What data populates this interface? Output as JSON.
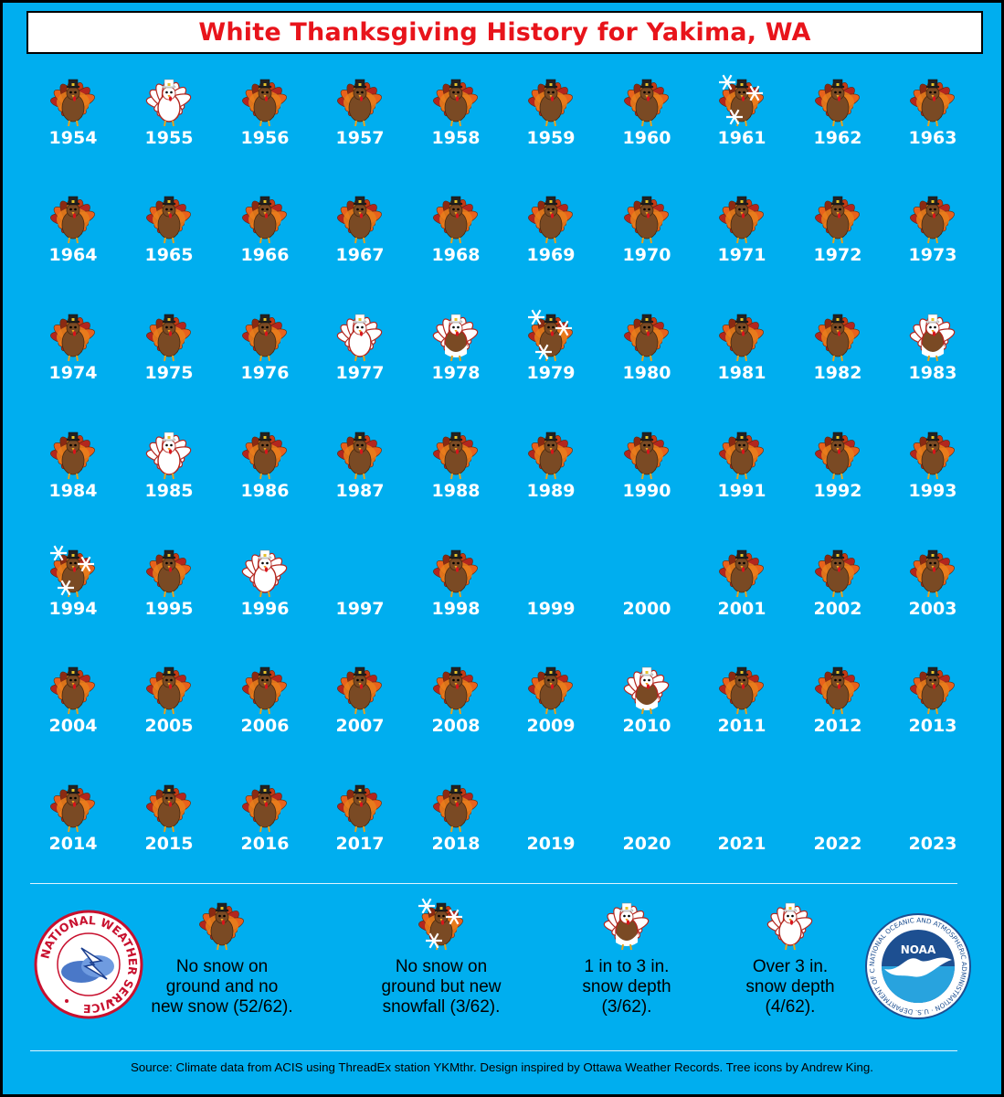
{
  "title": "White Thanksgiving History for Yakima, WA",
  "colors": {
    "background": "#00aeef",
    "title": "#e8141b",
    "none": "#7a4a24",
    "new_snow": "#7a4a24",
    "depth_1_3": "#ffffff",
    "depth_over_3": "#ffffff"
  },
  "chart_data": {
    "type": "table",
    "title": "White Thanksgiving History for Yakima, WA",
    "categories": [
      "none",
      "new_snow",
      "depth_1_3",
      "depth_over_3",
      "no_data"
    ],
    "years": [
      {
        "year": "1954",
        "category": "none"
      },
      {
        "year": "1955",
        "category": "depth_over_3"
      },
      {
        "year": "1956",
        "category": "none"
      },
      {
        "year": "1957",
        "category": "none"
      },
      {
        "year": "1958",
        "category": "none"
      },
      {
        "year": "1959",
        "category": "none"
      },
      {
        "year": "1960",
        "category": "none"
      },
      {
        "year": "1961",
        "category": "new_snow"
      },
      {
        "year": "1962",
        "category": "none"
      },
      {
        "year": "1963",
        "category": "none"
      },
      {
        "year": "1964",
        "category": "none"
      },
      {
        "year": "1965",
        "category": "none"
      },
      {
        "year": "1966",
        "category": "none"
      },
      {
        "year": "1967",
        "category": "none"
      },
      {
        "year": "1968",
        "category": "none"
      },
      {
        "year": "1969",
        "category": "none"
      },
      {
        "year": "1970",
        "category": "none"
      },
      {
        "year": "1971",
        "category": "none"
      },
      {
        "year": "1972",
        "category": "none"
      },
      {
        "year": "1973",
        "category": "none"
      },
      {
        "year": "1974",
        "category": "none"
      },
      {
        "year": "1975",
        "category": "none"
      },
      {
        "year": "1976",
        "category": "none"
      },
      {
        "year": "1977",
        "category": "depth_over_3"
      },
      {
        "year": "1978",
        "category": "depth_1_3"
      },
      {
        "year": "1979",
        "category": "new_snow"
      },
      {
        "year": "1980",
        "category": "none"
      },
      {
        "year": "1981",
        "category": "none"
      },
      {
        "year": "1982",
        "category": "none"
      },
      {
        "year": "1983",
        "category": "depth_1_3"
      },
      {
        "year": "1984",
        "category": "none"
      },
      {
        "year": "1985",
        "category": "depth_over_3"
      },
      {
        "year": "1986",
        "category": "none"
      },
      {
        "year": "1987",
        "category": "none"
      },
      {
        "year": "1988",
        "category": "none"
      },
      {
        "year": "1989",
        "category": "none"
      },
      {
        "year": "1990",
        "category": "none"
      },
      {
        "year": "1991",
        "category": "none"
      },
      {
        "year": "1992",
        "category": "none"
      },
      {
        "year": "1993",
        "category": "none"
      },
      {
        "year": "1994",
        "category": "new_snow"
      },
      {
        "year": "1995",
        "category": "none"
      },
      {
        "year": "1996",
        "category": "depth_over_3"
      },
      {
        "year": "1997",
        "category": "no_data"
      },
      {
        "year": "1998",
        "category": "none"
      },
      {
        "year": "1999",
        "category": "no_data"
      },
      {
        "year": "2000",
        "category": "no_data"
      },
      {
        "year": "2001",
        "category": "none"
      },
      {
        "year": "2002",
        "category": "none"
      },
      {
        "year": "2003",
        "category": "none"
      },
      {
        "year": "2004",
        "category": "none"
      },
      {
        "year": "2005",
        "category": "none"
      },
      {
        "year": "2006",
        "category": "none"
      },
      {
        "year": "2007",
        "category": "none"
      },
      {
        "year": "2008",
        "category": "none"
      },
      {
        "year": "2009",
        "category": "none"
      },
      {
        "year": "2010",
        "category": "depth_1_3"
      },
      {
        "year": "2011",
        "category": "none"
      },
      {
        "year": "2012",
        "category": "none"
      },
      {
        "year": "2013",
        "category": "none"
      },
      {
        "year": "2014",
        "category": "none"
      },
      {
        "year": "2015",
        "category": "none"
      },
      {
        "year": "2016",
        "category": "none"
      },
      {
        "year": "2017",
        "category": "none"
      },
      {
        "year": "2018",
        "category": "none"
      },
      {
        "year": "2019",
        "category": "no_data"
      },
      {
        "year": "2020",
        "category": "no_data"
      },
      {
        "year": "2021",
        "category": "no_data"
      },
      {
        "year": "2022",
        "category": "no_data"
      },
      {
        "year": "2023",
        "category": "no_data"
      }
    ]
  },
  "legend": {
    "none": "No snow on ground and no new snow (52/62).",
    "new_snow": "No snow on ground but new snowfall (3/62).",
    "depth_1_3": "1 in to 3 in. snow depth (3/62).",
    "depth_over_3": "Over 3 in. snow depth (4/62)."
  },
  "legend_lines": {
    "none": [
      "No snow on",
      "ground and no",
      "new snow (52/62)."
    ],
    "new_snow": [
      "No snow on",
      "ground but new",
      "snowfall (3/62)."
    ],
    "depth_1_3": [
      "1 in to 3 in.",
      "snow depth",
      "(3/62)."
    ],
    "depth_over_3": [
      "Over 3 in.",
      "snow depth",
      "(4/62)."
    ]
  },
  "logos": {
    "nws": "NATIONAL WEATHER SERVICE",
    "noaa": "NOAA",
    "noaa_ring": "NATIONAL OCEANIC AND ATMOSPHERIC ADMINISTRATION · U.S. DEPARTMENT OF COMMERCE"
  },
  "source": "Source: Climate data from ACIS using ThreadEx station YKMthr. Design inspired by Ottawa Weather Records. Tree icons by Andrew King."
}
